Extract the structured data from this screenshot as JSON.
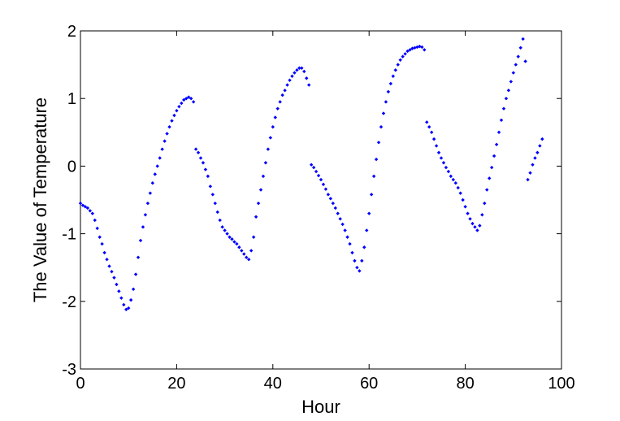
{
  "chart_data": {
    "type": "scatter",
    "title": "",
    "xlabel": "Hour",
    "ylabel": "The Value of Temperature",
    "xlim": [
      0,
      100
    ],
    "ylim": [
      -3,
      2
    ],
    "xticks": [
      0,
      20,
      40,
      60,
      80,
      100
    ],
    "yticks": [
      -3,
      -2,
      -1,
      0,
      1,
      2
    ],
    "xtick_labels": [
      "0",
      "20",
      "40",
      "60",
      "80",
      "100"
    ],
    "ytick_labels": [
      "-3",
      "-2",
      "-1",
      "0",
      "1",
      "2"
    ],
    "marker": "diamond",
    "marker_color": "#0000ff",
    "grid": false,
    "box": true,
    "series": [
      {
        "points": [
          [
            0.0,
            -0.55
          ],
          [
            0.5,
            -0.58
          ],
          [
            1.0,
            -0.6
          ],
          [
            1.5,
            -0.62
          ],
          [
            2.0,
            -0.66
          ],
          [
            2.5,
            -0.7
          ],
          [
            3.0,
            -0.8
          ],
          [
            3.5,
            -0.92
          ],
          [
            4.0,
            -1.05
          ],
          [
            4.5,
            -1.15
          ],
          [
            5.0,
            -1.28
          ],
          [
            5.5,
            -1.38
          ],
          [
            6.0,
            -1.48
          ],
          [
            6.5,
            -1.56
          ],
          [
            7.0,
            -1.65
          ],
          [
            7.5,
            -1.75
          ],
          [
            8.0,
            -1.85
          ],
          [
            8.5,
            -1.95
          ],
          [
            9.0,
            -2.05
          ],
          [
            9.5,
            -2.12
          ],
          [
            10.0,
            -2.1
          ],
          [
            10.5,
            -1.98
          ],
          [
            11.0,
            -1.82
          ],
          [
            11.5,
            -1.6
          ],
          [
            12.0,
            -1.35
          ],
          [
            12.5,
            -1.1
          ],
          [
            13.0,
            -0.9
          ],
          [
            13.5,
            -0.72
          ],
          [
            14.0,
            -0.55
          ],
          [
            14.5,
            -0.4
          ],
          [
            15.0,
            -0.25
          ],
          [
            15.5,
            -0.12
          ],
          [
            16.0,
            0.0
          ],
          [
            16.5,
            0.12
          ],
          [
            17.0,
            0.25
          ],
          [
            17.5,
            0.37
          ],
          [
            18.0,
            0.48
          ],
          [
            18.5,
            0.58
          ],
          [
            19.0,
            0.67
          ],
          [
            19.5,
            0.75
          ],
          [
            20.0,
            0.82
          ],
          [
            20.5,
            0.88
          ],
          [
            21.0,
            0.93
          ],
          [
            21.5,
            0.98
          ],
          [
            22.0,
            1.0
          ],
          [
            22.5,
            1.02
          ],
          [
            23.0,
            1.0
          ],
          [
            23.5,
            0.95
          ],
          [
            24.0,
            0.25
          ],
          [
            24.5,
            0.2
          ],
          [
            25.0,
            0.12
          ],
          [
            25.5,
            0.05
          ],
          [
            26.0,
            -0.05
          ],
          [
            26.5,
            -0.15
          ],
          [
            27.0,
            -0.3
          ],
          [
            27.5,
            -0.42
          ],
          [
            28.0,
            -0.55
          ],
          [
            28.5,
            -0.68
          ],
          [
            29.0,
            -0.8
          ],
          [
            29.5,
            -0.9
          ],
          [
            30.0,
            -0.95
          ],
          [
            30.5,
            -1.0
          ],
          [
            31.0,
            -1.05
          ],
          [
            31.5,
            -1.08
          ],
          [
            32.0,
            -1.12
          ],
          [
            32.5,
            -1.15
          ],
          [
            33.0,
            -1.2
          ],
          [
            33.5,
            -1.25
          ],
          [
            34.0,
            -1.3
          ],
          [
            34.5,
            -1.35
          ],
          [
            35.0,
            -1.38
          ],
          [
            35.5,
            -1.25
          ],
          [
            36.0,
            -1.05
          ],
          [
            36.5,
            -0.75
          ],
          [
            37.0,
            -0.55
          ],
          [
            37.5,
            -0.35
          ],
          [
            38.0,
            -0.15
          ],
          [
            38.5,
            0.05
          ],
          [
            39.0,
            0.25
          ],
          [
            39.5,
            0.42
          ],
          [
            40.0,
            0.58
          ],
          [
            40.5,
            0.72
          ],
          [
            41.0,
            0.85
          ],
          [
            41.5,
            0.95
          ],
          [
            42.0,
            1.05
          ],
          [
            42.5,
            1.12
          ],
          [
            43.0,
            1.2
          ],
          [
            43.5,
            1.27
          ],
          [
            44.0,
            1.33
          ],
          [
            44.5,
            1.38
          ],
          [
            45.0,
            1.42
          ],
          [
            45.5,
            1.45
          ],
          [
            46.0,
            1.45
          ],
          [
            46.5,
            1.4
          ],
          [
            47.0,
            1.3
          ],
          [
            47.5,
            1.2
          ],
          [
            48.0,
            0.02
          ],
          [
            48.5,
            -0.02
          ],
          [
            49.0,
            -0.08
          ],
          [
            49.5,
            -0.14
          ],
          [
            50.0,
            -0.2
          ],
          [
            50.5,
            -0.27
          ],
          [
            51.0,
            -0.34
          ],
          [
            51.5,
            -0.42
          ],
          [
            52.0,
            -0.48
          ],
          [
            52.5,
            -0.55
          ],
          [
            53.0,
            -0.62
          ],
          [
            53.5,
            -0.7
          ],
          [
            54.0,
            -0.78
          ],
          [
            54.5,
            -0.86
          ],
          [
            55.0,
            -0.95
          ],
          [
            55.5,
            -1.05
          ],
          [
            56.0,
            -1.15
          ],
          [
            56.5,
            -1.28
          ],
          [
            57.0,
            -1.4
          ],
          [
            57.5,
            -1.5
          ],
          [
            58.0,
            -1.55
          ],
          [
            58.5,
            -1.4
          ],
          [
            59.0,
            -1.2
          ],
          [
            59.5,
            -0.95
          ],
          [
            60.0,
            -0.7
          ],
          [
            60.5,
            -0.42
          ],
          [
            61.0,
            -0.15
          ],
          [
            61.5,
            0.1
          ],
          [
            62.0,
            0.35
          ],
          [
            62.5,
            0.58
          ],
          [
            63.0,
            0.78
          ],
          [
            63.5,
            0.95
          ],
          [
            64.0,
            1.1
          ],
          [
            64.5,
            1.22
          ],
          [
            65.0,
            1.33
          ],
          [
            65.5,
            1.42
          ],
          [
            66.0,
            1.5
          ],
          [
            66.5,
            1.57
          ],
          [
            67.0,
            1.62
          ],
          [
            67.5,
            1.66
          ],
          [
            68.0,
            1.7
          ],
          [
            68.5,
            1.72
          ],
          [
            69.0,
            1.74
          ],
          [
            69.5,
            1.75
          ],
          [
            70.0,
            1.76
          ],
          [
            70.5,
            1.77
          ],
          [
            71.0,
            1.76
          ],
          [
            71.5,
            1.72
          ],
          [
            72.0,
            0.65
          ],
          [
            72.5,
            0.58
          ],
          [
            73.0,
            0.5
          ],
          [
            73.5,
            0.4
          ],
          [
            74.0,
            0.3
          ],
          [
            74.5,
            0.2
          ],
          [
            75.0,
            0.12
          ],
          [
            75.5,
            0.05
          ],
          [
            76.0,
            -0.02
          ],
          [
            76.5,
            -0.08
          ],
          [
            77.0,
            -0.15
          ],
          [
            77.5,
            -0.2
          ],
          [
            78.0,
            -0.25
          ],
          [
            78.5,
            -0.32
          ],
          [
            79.0,
            -0.4
          ],
          [
            79.5,
            -0.5
          ],
          [
            80.0,
            -0.6
          ],
          [
            80.5,
            -0.7
          ],
          [
            81.0,
            -0.78
          ],
          [
            81.5,
            -0.85
          ],
          [
            82.0,
            -0.9
          ],
          [
            82.5,
            -0.95
          ],
          [
            83.0,
            -0.88
          ],
          [
            83.5,
            -0.72
          ],
          [
            84.0,
            -0.55
          ],
          [
            84.5,
            -0.35
          ],
          [
            85.0,
            -0.18
          ],
          [
            85.5,
            -0.02
          ],
          [
            86.0,
            0.15
          ],
          [
            86.5,
            0.32
          ],
          [
            87.0,
            0.5
          ],
          [
            87.5,
            0.68
          ],
          [
            88.0,
            0.85
          ],
          [
            88.5,
            1.0
          ],
          [
            89.0,
            1.12
          ],
          [
            89.5,
            1.25
          ],
          [
            90.0,
            1.38
          ],
          [
            90.5,
            1.5
          ],
          [
            91.0,
            1.62
          ],
          [
            91.5,
            1.75
          ],
          [
            92.0,
            1.88
          ],
          [
            92.5,
            1.55
          ],
          [
            93.0,
            -0.2
          ],
          [
            93.5,
            -0.1
          ],
          [
            94.0,
            0.02
          ],
          [
            94.5,
            0.12
          ],
          [
            95.0,
            0.2
          ],
          [
            95.5,
            0.3
          ],
          [
            96.0,
            0.4
          ]
        ]
      }
    ]
  }
}
